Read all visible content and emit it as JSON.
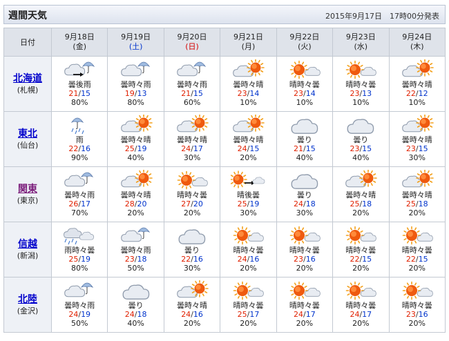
{
  "header": {
    "title": "週間天気",
    "published": "2015年9月17日　17時00分発表"
  },
  "table": {
    "corner_label": "日付",
    "days": [
      {
        "date": "9月18日",
        "weekday": "(金)",
        "type": "weekday"
      },
      {
        "date": "9月19日",
        "weekday": "(土)",
        "type": "sat"
      },
      {
        "date": "9月20日",
        "weekday": "(日)",
        "type": "sun"
      },
      {
        "date": "9月21日",
        "weekday": "(月)",
        "type": "weekday"
      },
      {
        "date": "9月22日",
        "weekday": "(火)",
        "type": "weekday"
      },
      {
        "date": "9月23日",
        "weekday": "(水)",
        "type": "weekday"
      },
      {
        "date": "9月24日",
        "weekday": "(木)",
        "type": "weekday"
      }
    ],
    "regions": [
      {
        "name": "北海道",
        "city": "(札幌)",
        "name_color": "blue",
        "cells": [
          {
            "icon": "cloud-then-rain-icon",
            "text": "曇後雨",
            "max": "21",
            "min": "15",
            "pop": "80%"
          },
          {
            "icon": "cloud-rain-icon",
            "text": "曇時々雨",
            "max": "19",
            "min": "13",
            "pop": "80%"
          },
          {
            "icon": "cloud-rain-icon",
            "text": "曇時々雨",
            "max": "21",
            "min": "15",
            "pop": "60%"
          },
          {
            "icon": "cloud-sun-icon",
            "text": "曇時々晴",
            "max": "23",
            "min": "14",
            "pop": "10%"
          },
          {
            "icon": "sun-cloud-icon",
            "text": "晴時々曇",
            "max": "23",
            "min": "14",
            "pop": "10%"
          },
          {
            "icon": "sun-cloud-icon",
            "text": "晴時々曇",
            "max": "23",
            "min": "13",
            "pop": "10%"
          },
          {
            "icon": "cloud-sun-icon",
            "text": "曇時々晴",
            "max": "22",
            "min": "12",
            "pop": "10%"
          }
        ]
      },
      {
        "name": "東北",
        "city": "(仙台)",
        "name_color": "blue",
        "cells": [
          {
            "icon": "rain-icon",
            "text": "雨",
            "max": "22",
            "min": "16",
            "pop": "90%"
          },
          {
            "icon": "cloud-sun-icon",
            "text": "曇時々晴",
            "max": "25",
            "min": "19",
            "pop": "40%"
          },
          {
            "icon": "cloud-sun-icon",
            "text": "曇時々晴",
            "max": "24",
            "min": "17",
            "pop": "30%"
          },
          {
            "icon": "cloud-sun-icon",
            "text": "曇時々晴",
            "max": "24",
            "min": "15",
            "pop": "20%"
          },
          {
            "icon": "cloud-icon",
            "text": "曇り",
            "max": "21",
            "min": "15",
            "pop": "40%"
          },
          {
            "icon": "cloud-icon",
            "text": "曇り",
            "max": "23",
            "min": "15",
            "pop": "40%"
          },
          {
            "icon": "cloud-sun-icon",
            "text": "曇時々晴",
            "max": "23",
            "min": "15",
            "pop": "30%"
          }
        ]
      },
      {
        "name": "関東",
        "city": "(東京)",
        "name_color": "purple",
        "cells": [
          {
            "icon": "cloud-rain-icon",
            "text": "曇時々雨",
            "max": "26",
            "min": "17",
            "pop": "70%"
          },
          {
            "icon": "cloud-sun-icon",
            "text": "曇時々晴",
            "max": "28",
            "min": "20",
            "pop": "20%"
          },
          {
            "icon": "sun-cloud-icon",
            "text": "晴時々曇",
            "max": "27",
            "min": "20",
            "pop": "20%"
          },
          {
            "icon": "sun-then-cloud-icon",
            "text": "晴後曇",
            "max": "25",
            "min": "19",
            "pop": "30%"
          },
          {
            "icon": "cloud-icon",
            "text": "曇り",
            "max": "24",
            "min": "18",
            "pop": "30%"
          },
          {
            "icon": "cloud-sun-icon",
            "text": "曇時々晴",
            "max": "25",
            "min": "18",
            "pop": "20%"
          },
          {
            "icon": "cloud-sun-icon",
            "text": "曇時々晴",
            "max": "25",
            "min": "18",
            "pop": "20%"
          }
        ]
      },
      {
        "name": "信越",
        "city": "(新潟)",
        "name_color": "blue",
        "cells": [
          {
            "icon": "rain-cloud-icon",
            "text": "雨時々曇",
            "max": "25",
            "min": "19",
            "pop": "80%"
          },
          {
            "icon": "cloud-rain-icon",
            "text": "曇時々雨",
            "max": "23",
            "min": "18",
            "pop": "50%"
          },
          {
            "icon": "cloud-icon",
            "text": "曇り",
            "max": "22",
            "min": "16",
            "pop": "30%"
          },
          {
            "icon": "sun-cloud-icon",
            "text": "晴時々曇",
            "max": "24",
            "min": "16",
            "pop": "20%"
          },
          {
            "icon": "sun-cloud-icon",
            "text": "晴時々曇",
            "max": "23",
            "min": "16",
            "pop": "20%"
          },
          {
            "icon": "sun-cloud-icon",
            "text": "晴時々曇",
            "max": "22",
            "min": "15",
            "pop": "20%"
          },
          {
            "icon": "sun-cloud-icon",
            "text": "晴時々曇",
            "max": "22",
            "min": "15",
            "pop": "20%"
          }
        ]
      },
      {
        "name": "北陸",
        "city": "(金沢)",
        "name_color": "blue",
        "cells": [
          {
            "icon": "cloud-rain-icon",
            "text": "曇時々雨",
            "max": "24",
            "min": "19",
            "pop": "50%"
          },
          {
            "icon": "cloud-icon",
            "text": "曇り",
            "max": "24",
            "min": "18",
            "pop": "40%"
          },
          {
            "icon": "cloud-sun-icon",
            "text": "曇時々晴",
            "max": "24",
            "min": "16",
            "pop": "20%"
          },
          {
            "icon": "sun-cloud-icon",
            "text": "晴時々曇",
            "max": "25",
            "min": "17",
            "pop": "20%"
          },
          {
            "icon": "sun-cloud-icon",
            "text": "晴時々曇",
            "max": "24",
            "min": "17",
            "pop": "20%"
          },
          {
            "icon": "sun-cloud-icon",
            "text": "晴時々曇",
            "max": "24",
            "min": "17",
            "pop": "20%"
          },
          {
            "icon": "sun-cloud-icon",
            "text": "晴時々曇",
            "max": "23",
            "min": "16",
            "pop": "20%"
          }
        ]
      }
    ]
  },
  "colors": {
    "max_temp": "#e02000",
    "min_temp": "#0033cc",
    "saturday": "#0033cc",
    "sunday": "#d60000",
    "header_bg": "#dfe3ea"
  }
}
